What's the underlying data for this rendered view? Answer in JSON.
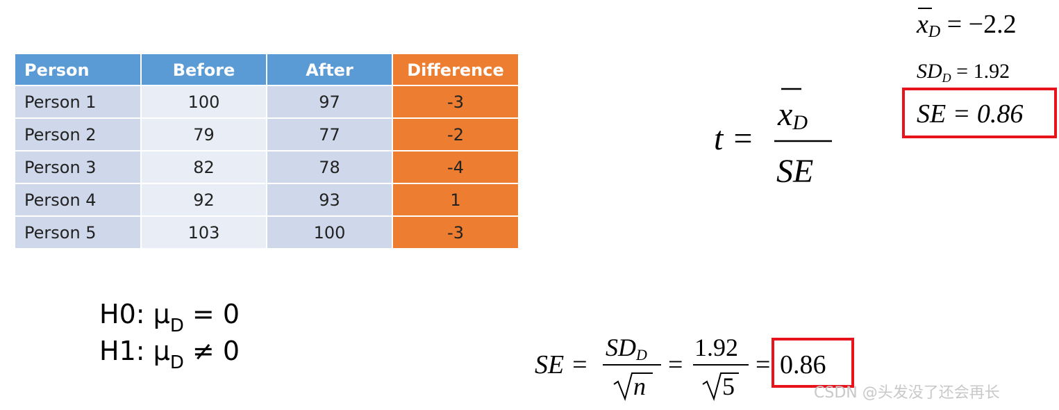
{
  "table": {
    "header": [
      "Person",
      "Before",
      "After",
      "Difference"
    ],
    "rows": [
      [
        "Person 1",
        100,
        97,
        -3
      ],
      [
        "Person 2",
        79,
        77,
        -2
      ],
      [
        "Person 3",
        82,
        78,
        -4
      ],
      [
        "Person 4",
        92,
        93,
        1
      ],
      [
        "Person 5",
        103,
        100,
        -3
      ]
    ]
  },
  "hypotheses": [
    {
      "lead": "H0: μ",
      "sub": "D",
      "rest": " = 0"
    },
    {
      "lead": "H1: μ",
      "sub": "D",
      "rest": " ≠ 0"
    }
  ],
  "summary": {
    "mean": {
      "var": "x",
      "sub": "D",
      "rhs": " = −2.2"
    },
    "sd": {
      "var": "SD",
      "sub": "D",
      "rhs": " = 1.92"
    },
    "se": "SE = 0.86"
  },
  "t_formula": {
    "lhs": "t =",
    "num_var": "x",
    "num_sub": "D",
    "den": "SE"
  },
  "se_formula": {
    "lhs": "SE =",
    "num_var": "SD",
    "num_sub": "D",
    "den_var": "n",
    "eq1": "=",
    "num2": "1.92",
    "den2": "5",
    "eq2": "=",
    "result": "0.86"
  },
  "watermark": "CSDN @头发没了还会再长"
}
